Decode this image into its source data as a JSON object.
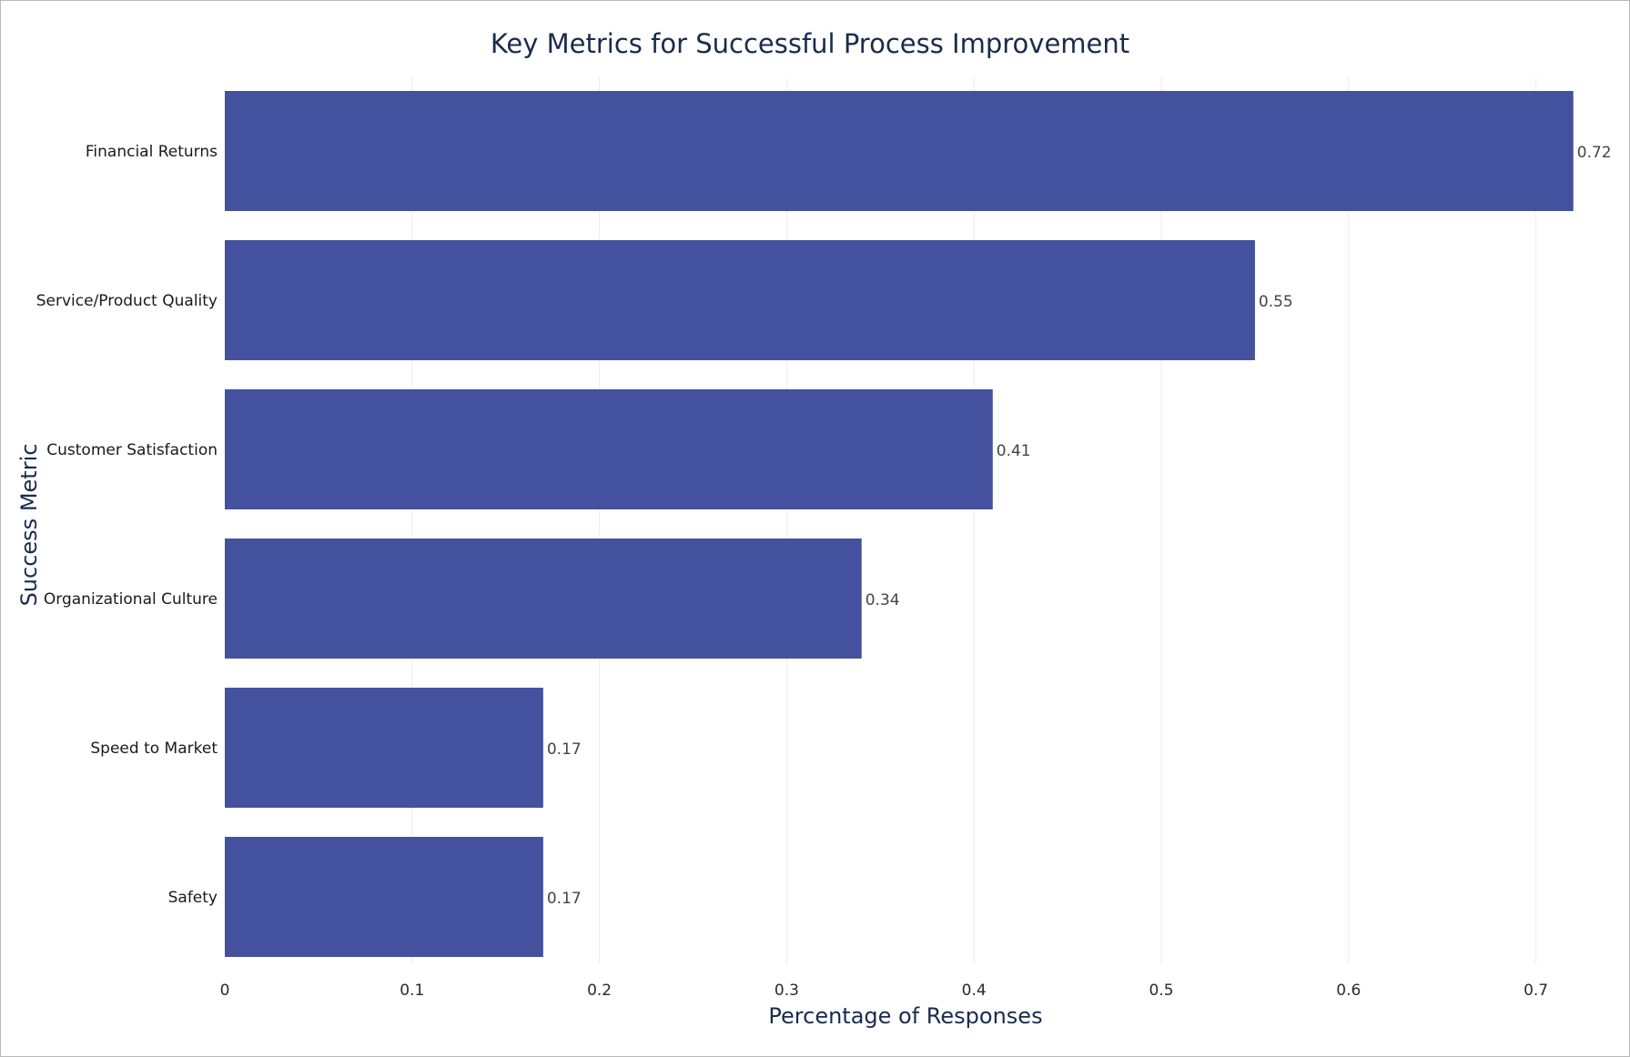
{
  "chart_data": {
    "type": "bar",
    "orientation": "horizontal",
    "title": "Key Metrics for Successful Process Improvement",
    "xlabel": "Percentage of Responses",
    "ylabel": "Success Metric",
    "categories": [
      "Financial Returns",
      "Service/Product Quality",
      "Customer Satisfaction",
      "Organizational Culture",
      "Speed to Market",
      "Safety"
    ],
    "values": [
      0.72,
      0.55,
      0.41,
      0.34,
      0.17,
      0.17
    ],
    "value_labels": [
      "0.72",
      "0.55",
      "0.41",
      "0.34",
      "0.17",
      "0.17"
    ],
    "xlim": [
      0,
      0.74
    ],
    "xticks": [
      0,
      0.1,
      0.2,
      0.3,
      0.4,
      0.5,
      0.6,
      0.7
    ],
    "xtick_labels": [
      "0",
      "0.1",
      "0.2",
      "0.3",
      "0.4",
      "0.5",
      "0.6",
      "0.7"
    ],
    "grid": "vertical",
    "legend": "none",
    "colors": {
      "bar": "#43519e",
      "grid": "#ececec",
      "text": "#1a2b4c"
    }
  }
}
